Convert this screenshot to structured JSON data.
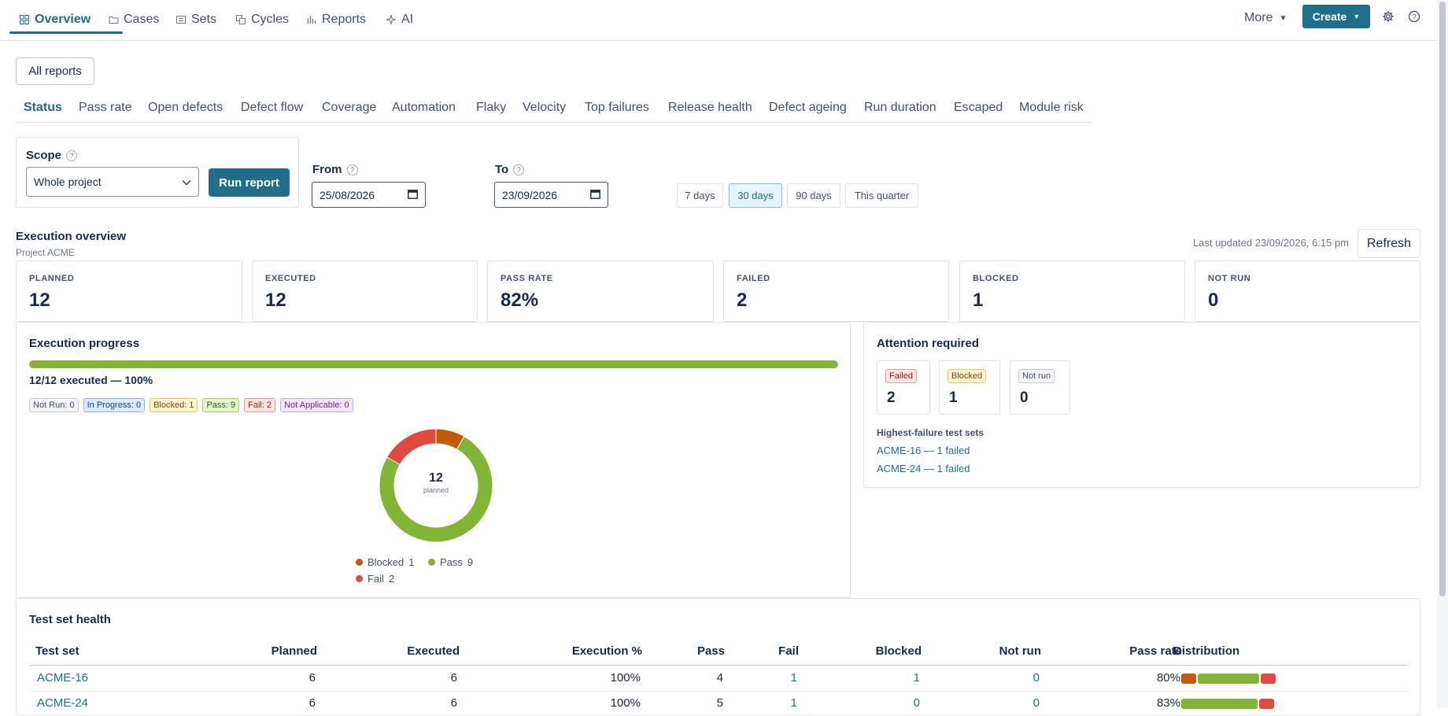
{
  "nav": {
    "tabs": [
      {
        "label": "Overview",
        "icon": "grid-icon"
      },
      {
        "label": "Cases",
        "icon": "folder-icon"
      },
      {
        "label": "Sets",
        "icon": "list-icon"
      },
      {
        "label": "Cycles",
        "icon": "copy-icon"
      },
      {
        "label": "Reports",
        "icon": "bar-chart-icon"
      },
      {
        "label": "AI",
        "icon": "sparkle-icon"
      }
    ],
    "more_label": "More",
    "create_label": "Create"
  },
  "all_reports_label": "All reports",
  "report_tabs": [
    "Status",
    "Pass rate",
    "Open defects",
    "Defect flow",
    "Coverage",
    "Automation",
    "Flaky",
    "Velocity",
    "Top failures",
    "Release health",
    "Defect ageing",
    "Run duration",
    "Escaped",
    "Module risk"
  ],
  "filters": {
    "scope_label": "Scope",
    "scope_value": "Whole project",
    "run_label": "Run report",
    "from_label": "From",
    "from_value": "25/08/2026",
    "to_label": "To",
    "to_value": "23/09/2026",
    "quick_ranges": [
      "7 days",
      "30 days",
      "90 days",
      "This quarter"
    ],
    "active_range": "30 days"
  },
  "overview": {
    "title": "Execution overview",
    "subtitle": "Project ACME",
    "last_updated": "Last updated 23/09/2026, 6:15 pm",
    "refresh_label": "Refresh",
    "stats": [
      {
        "label": "PLANNED",
        "value": "12"
      },
      {
        "label": "EXECUTED",
        "value": "12"
      },
      {
        "label": "PASS RATE",
        "value": "82%"
      },
      {
        "label": "FAILED",
        "value": "2"
      },
      {
        "label": "BLOCKED",
        "value": "1"
      },
      {
        "label": "NOT RUN",
        "value": "0"
      }
    ]
  },
  "progress": {
    "title": "Execution progress",
    "fraction": 1.0,
    "summary": "12/12 executed — 100%",
    "chips": [
      {
        "label": "Not Run: 0",
        "kind": "notrun"
      },
      {
        "label": "In Progress: 0",
        "kind": "inprog"
      },
      {
        "label": "Blocked: 1",
        "kind": "blocked"
      },
      {
        "label": "Pass: 9",
        "kind": "pass"
      },
      {
        "label": "Fail: 2",
        "kind": "fail"
      },
      {
        "label": "Not Applicable: 0",
        "kind": "na"
      }
    ],
    "donut_total": "12",
    "donut_caption": "planned",
    "legend": [
      {
        "label": "Blocked",
        "count": "1"
      },
      {
        "label": "Pass",
        "count": "9"
      },
      {
        "label": "Fail",
        "count": "2"
      }
    ]
  },
  "chart_data": {
    "type": "pie",
    "categories": [
      "Blocked",
      "Pass",
      "Fail"
    ],
    "values": [
      1,
      9,
      2
    ],
    "colors": [
      "#c45a0a",
      "#82b536",
      "#e2493f"
    ],
    "center_value": "12",
    "center_caption": "planned"
  },
  "attention": {
    "title": "Attention required",
    "cards": [
      {
        "label": "Failed",
        "value": "2",
        "kind": "failed"
      },
      {
        "label": "Blocked",
        "value": "1",
        "kind": "blocked"
      },
      {
        "label": "Not run",
        "value": "0",
        "kind": "notrun"
      }
    ],
    "highest_title": "Highest-failure test sets",
    "highest": [
      "ACME-16 — 1 failed",
      "ACME-24 — 1 failed"
    ]
  },
  "health": {
    "title": "Test set health",
    "columns": [
      "Test set",
      "Planned",
      "Executed",
      "Execution %",
      "Pass",
      "Fail",
      "Blocked",
      "Not run",
      "Pass rate",
      "Distribution"
    ],
    "rows": [
      {
        "set": "ACME-16",
        "planned": "6",
        "executed": "6",
        "exec_pct": "100%",
        "pass": "4",
        "fail": "1",
        "blocked": "1",
        "notrun": "0",
        "pass_rate": "80%",
        "dist": {
          "blocked": 1,
          "pass": 4,
          "fail": 1
        }
      },
      {
        "set": "ACME-24",
        "planned": "6",
        "executed": "6",
        "exec_pct": "100%",
        "pass": "5",
        "fail": "1",
        "blocked": "0",
        "notrun": "0",
        "pass_rate": "83%",
        "dist": {
          "blocked": 0,
          "pass": 5,
          "fail": 1
        }
      }
    ]
  },
  "colors": {
    "accent": "#1f6f8b",
    "pass": "#82b536",
    "fail": "#e2493f",
    "blocked": "#c45a0a"
  }
}
